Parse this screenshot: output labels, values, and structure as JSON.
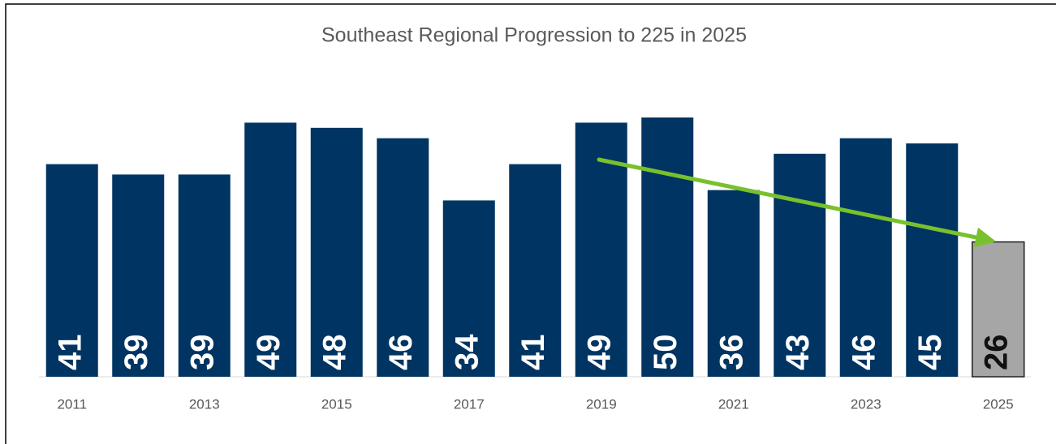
{
  "chart_data": {
    "type": "bar",
    "title": "Southeast Regional Progression to 225 in 2025",
    "categories": [
      "2011",
      null,
      "2013",
      null,
      "2015",
      null,
      "2017",
      null,
      "2019",
      null,
      "2021",
      null,
      "2023",
      null,
      "2025"
    ],
    "values": [
      41,
      39,
      39,
      49,
      48,
      46,
      34,
      41,
      49,
      50,
      36,
      43,
      46,
      45,
      26
    ],
    "colors": [
      "#003462",
      "#003462",
      "#003462",
      "#003462",
      "#003462",
      "#003462",
      "#003462",
      "#003462",
      "#003462",
      "#003462",
      "#003462",
      "#003462",
      "#003462",
      "#003462",
      "#a6a6a6"
    ],
    "edge_colors": [
      null,
      null,
      null,
      null,
      null,
      null,
      null,
      null,
      null,
      null,
      null,
      null,
      null,
      null,
      "#222222"
    ],
    "label_colors": [
      "#ffffff",
      "#ffffff",
      "#ffffff",
      "#ffffff",
      "#ffffff",
      "#ffffff",
      "#ffffff",
      "#ffffff",
      "#ffffff",
      "#ffffff",
      "#ffffff",
      "#ffffff",
      "#ffffff",
      "#ffffff",
      "#111111"
    ],
    "ylim": [
      0,
      70
    ],
    "grid": false
  }
}
